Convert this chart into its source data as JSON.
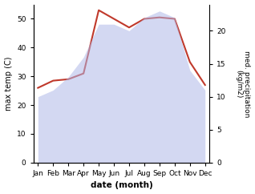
{
  "months": [
    "Jan",
    "Feb",
    "Mar",
    "Apr",
    "May",
    "Jun",
    "Jul",
    "Aug",
    "Sep",
    "Oct",
    "Nov",
    "Dec"
  ],
  "temp_line": [
    26,
    28.5,
    29,
    31,
    53,
    50,
    47,
    50,
    50.5,
    50,
    35,
    27
  ],
  "precip_area": [
    10,
    11,
    13,
    16,
    21,
    21,
    20,
    22,
    23,
    22,
    14,
    11
  ],
  "temp_ylim": [
    0,
    55
  ],
  "precip_ylim": [
    0,
    24
  ],
  "temp_yticks": [
    0,
    10,
    20,
    30,
    40,
    50
  ],
  "precip_yticks": [
    0,
    5,
    10,
    15,
    20
  ],
  "area_color": "#b0b8e8",
  "area_alpha": 0.55,
  "line_color": "#c0392b",
  "xlabel": "date (month)",
  "ylabel_left": "max temp (C)",
  "ylabel_right": "med. precipitation\n(kg/m2)",
  "background_color": "#ffffff",
  "line_width": 1.5
}
